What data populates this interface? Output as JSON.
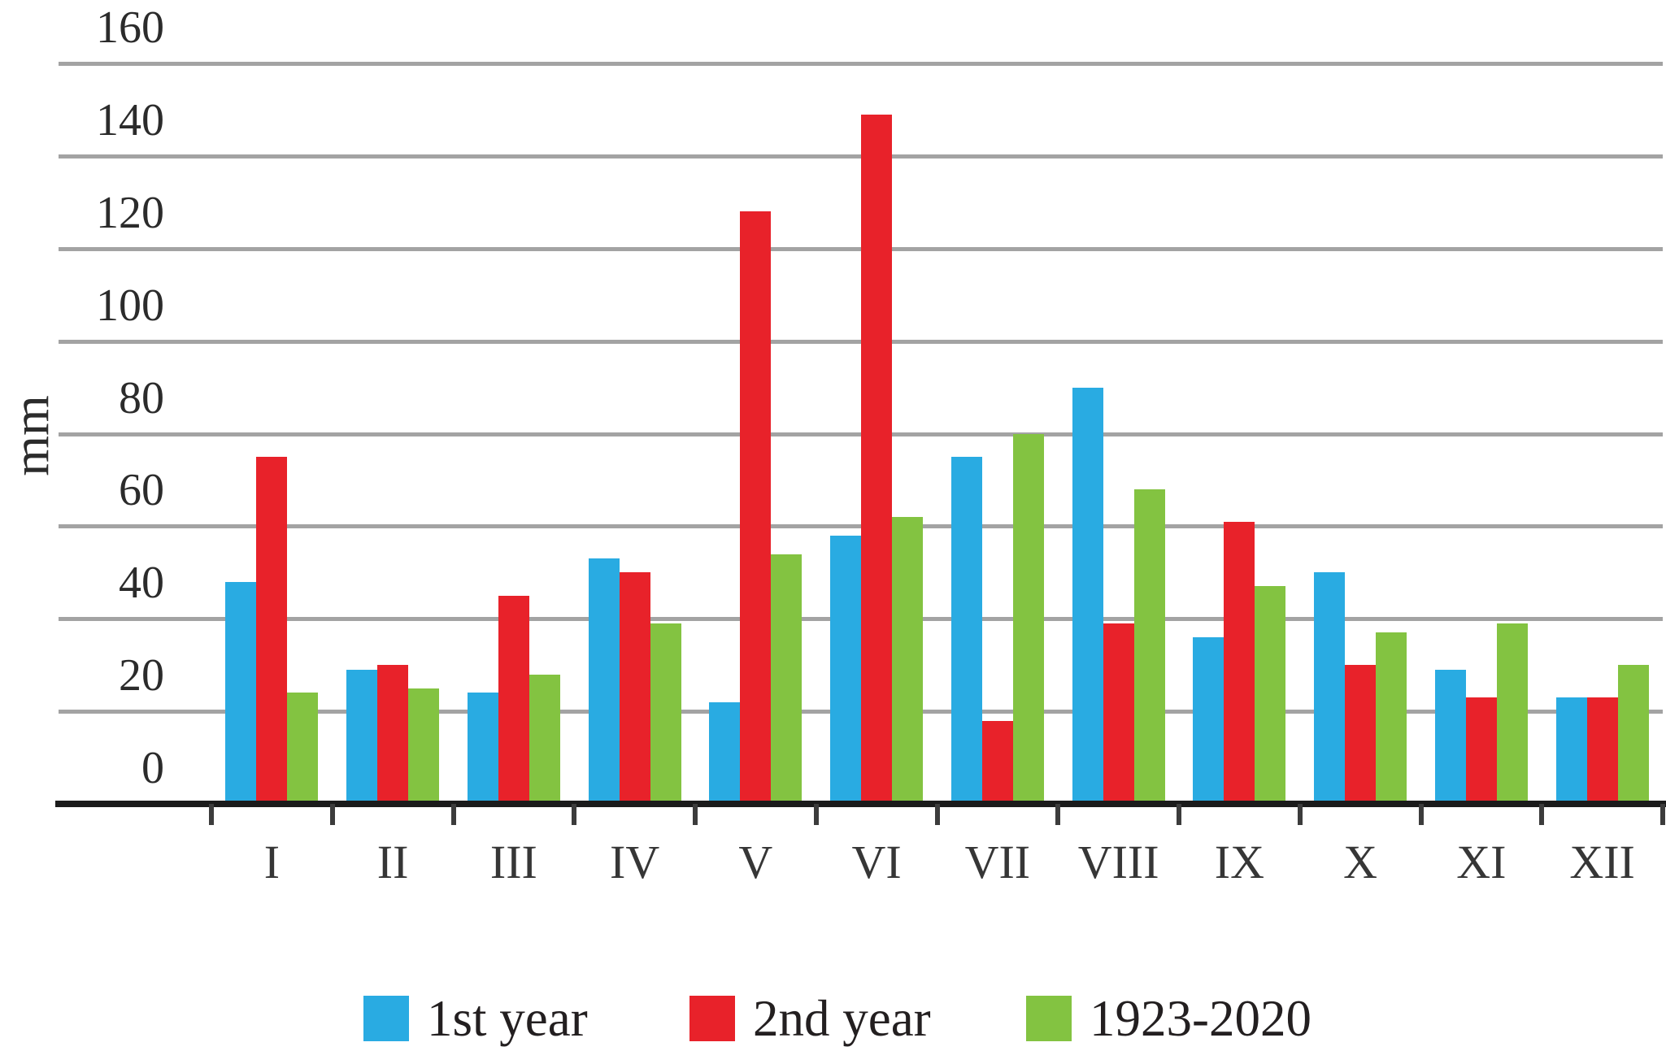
{
  "chart_data": {
    "type": "bar",
    "title": "",
    "xlabel": "",
    "ylabel": "mm",
    "ylim": [
      0,
      160
    ],
    "ytick_step": 20,
    "yticks": [
      "0",
      "20",
      "40",
      "60",
      "80",
      "100",
      "120",
      "140",
      "160"
    ],
    "grid": true,
    "legend_position": "bottom",
    "categories": [
      "I",
      "II",
      "III",
      "IV",
      "V",
      "VI",
      "VII",
      "VIII",
      "IX",
      "X",
      "XI",
      "XII"
    ],
    "series": [
      {
        "name": "1st year",
        "color": "#29ABE2",
        "values": [
          48,
          29,
          24,
          53,
          22,
          58,
          75,
          90,
          36,
          50,
          29,
          23
        ]
      },
      {
        "name": "2nd year",
        "color": "#E8222A",
        "values": [
          75,
          30,
          45,
          50,
          128,
          149,
          18,
          39,
          61,
          30,
          23,
          23
        ]
      },
      {
        "name": "1923-2020",
        "color": "#83C341",
        "values": [
          24,
          25,
          28,
          39,
          54,
          62,
          80,
          68,
          47,
          37,
          39,
          30
        ]
      }
    ],
    "colors": {
      "gridline": "#a3a3a3",
      "axis": "#1b1b1b",
      "text": "#2b2b2b"
    }
  }
}
